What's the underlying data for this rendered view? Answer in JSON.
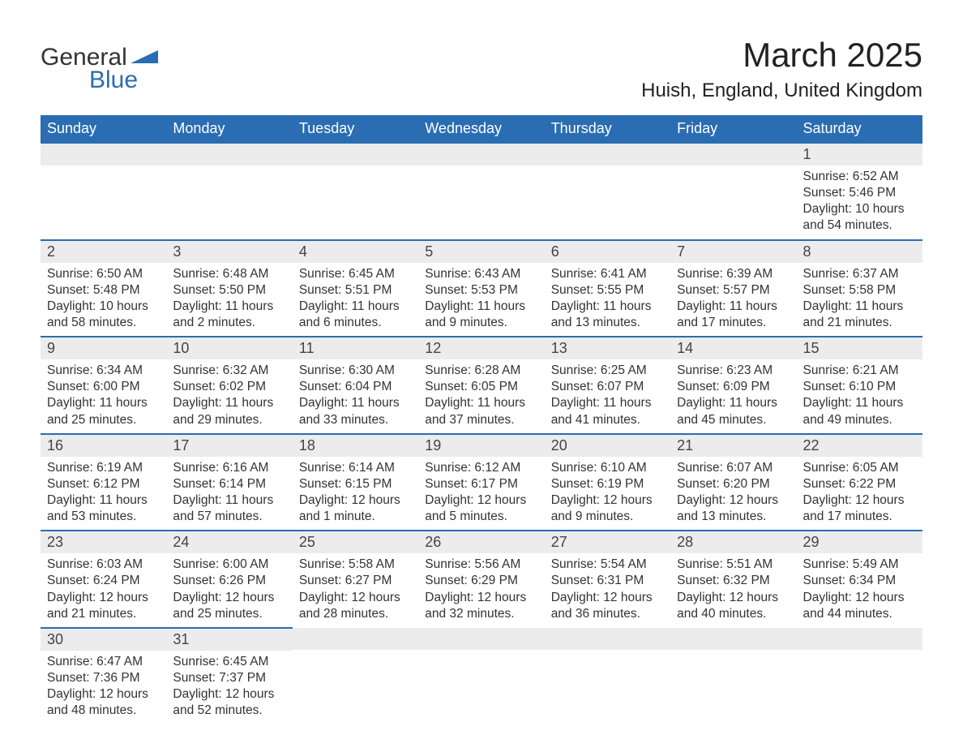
{
  "brand": {
    "line1": "General",
    "line2": "Blue"
  },
  "title": "March 2025",
  "location": "Huish, England, United Kingdom",
  "colors": {
    "header_bg": "#2a6db3",
    "header_text": "#ffffff",
    "daynum_bg": "#ececec",
    "row_border": "#2a6db3",
    "text": "#333333",
    "brand_blue": "#2b6cb0"
  },
  "weekdays": [
    "Sunday",
    "Monday",
    "Tuesday",
    "Wednesday",
    "Thursday",
    "Friday",
    "Saturday"
  ],
  "grid": {
    "rows": 6,
    "cols": 7,
    "first_day_col": 6,
    "days_in_month": 31
  },
  "days": {
    "1": {
      "sunrise": "6:52 AM",
      "sunset": "5:46 PM",
      "daylight": "10 hours and 54 minutes."
    },
    "2": {
      "sunrise": "6:50 AM",
      "sunset": "5:48 PM",
      "daylight": "10 hours and 58 minutes."
    },
    "3": {
      "sunrise": "6:48 AM",
      "sunset": "5:50 PM",
      "daylight": "11 hours and 2 minutes."
    },
    "4": {
      "sunrise": "6:45 AM",
      "sunset": "5:51 PM",
      "daylight": "11 hours and 6 minutes."
    },
    "5": {
      "sunrise": "6:43 AM",
      "sunset": "5:53 PM",
      "daylight": "11 hours and 9 minutes."
    },
    "6": {
      "sunrise": "6:41 AM",
      "sunset": "5:55 PM",
      "daylight": "11 hours and 13 minutes."
    },
    "7": {
      "sunrise": "6:39 AM",
      "sunset": "5:57 PM",
      "daylight": "11 hours and 17 minutes."
    },
    "8": {
      "sunrise": "6:37 AM",
      "sunset": "5:58 PM",
      "daylight": "11 hours and 21 minutes."
    },
    "9": {
      "sunrise": "6:34 AM",
      "sunset": "6:00 PM",
      "daylight": "11 hours and 25 minutes."
    },
    "10": {
      "sunrise": "6:32 AM",
      "sunset": "6:02 PM",
      "daylight": "11 hours and 29 minutes."
    },
    "11": {
      "sunrise": "6:30 AM",
      "sunset": "6:04 PM",
      "daylight": "11 hours and 33 minutes."
    },
    "12": {
      "sunrise": "6:28 AM",
      "sunset": "6:05 PM",
      "daylight": "11 hours and 37 minutes."
    },
    "13": {
      "sunrise": "6:25 AM",
      "sunset": "6:07 PM",
      "daylight": "11 hours and 41 minutes."
    },
    "14": {
      "sunrise": "6:23 AM",
      "sunset": "6:09 PM",
      "daylight": "11 hours and 45 minutes."
    },
    "15": {
      "sunrise": "6:21 AM",
      "sunset": "6:10 PM",
      "daylight": "11 hours and 49 minutes."
    },
    "16": {
      "sunrise": "6:19 AM",
      "sunset": "6:12 PM",
      "daylight": "11 hours and 53 minutes."
    },
    "17": {
      "sunrise": "6:16 AM",
      "sunset": "6:14 PM",
      "daylight": "11 hours and 57 minutes."
    },
    "18": {
      "sunrise": "6:14 AM",
      "sunset": "6:15 PM",
      "daylight": "12 hours and 1 minute."
    },
    "19": {
      "sunrise": "6:12 AM",
      "sunset": "6:17 PM",
      "daylight": "12 hours and 5 minutes."
    },
    "20": {
      "sunrise": "6:10 AM",
      "sunset": "6:19 PM",
      "daylight": "12 hours and 9 minutes."
    },
    "21": {
      "sunrise": "6:07 AM",
      "sunset": "6:20 PM",
      "daylight": "12 hours and 13 minutes."
    },
    "22": {
      "sunrise": "6:05 AM",
      "sunset": "6:22 PM",
      "daylight": "12 hours and 17 minutes."
    },
    "23": {
      "sunrise": "6:03 AM",
      "sunset": "6:24 PM",
      "daylight": "12 hours and 21 minutes."
    },
    "24": {
      "sunrise": "6:00 AM",
      "sunset": "6:26 PM",
      "daylight": "12 hours and 25 minutes."
    },
    "25": {
      "sunrise": "5:58 AM",
      "sunset": "6:27 PM",
      "daylight": "12 hours and 28 minutes."
    },
    "26": {
      "sunrise": "5:56 AM",
      "sunset": "6:29 PM",
      "daylight": "12 hours and 32 minutes."
    },
    "27": {
      "sunrise": "5:54 AM",
      "sunset": "6:31 PM",
      "daylight": "12 hours and 36 minutes."
    },
    "28": {
      "sunrise": "5:51 AM",
      "sunset": "6:32 PM",
      "daylight": "12 hours and 40 minutes."
    },
    "29": {
      "sunrise": "5:49 AM",
      "sunset": "6:34 PM",
      "daylight": "12 hours and 44 minutes."
    },
    "30": {
      "sunrise": "6:47 AM",
      "sunset": "7:36 PM",
      "daylight": "12 hours and 48 minutes."
    },
    "31": {
      "sunrise": "6:45 AM",
      "sunset": "7:37 PM",
      "daylight": "12 hours and 52 minutes."
    }
  },
  "labels": {
    "sunrise": "Sunrise:",
    "sunset": "Sunset:",
    "daylight": "Daylight:"
  }
}
